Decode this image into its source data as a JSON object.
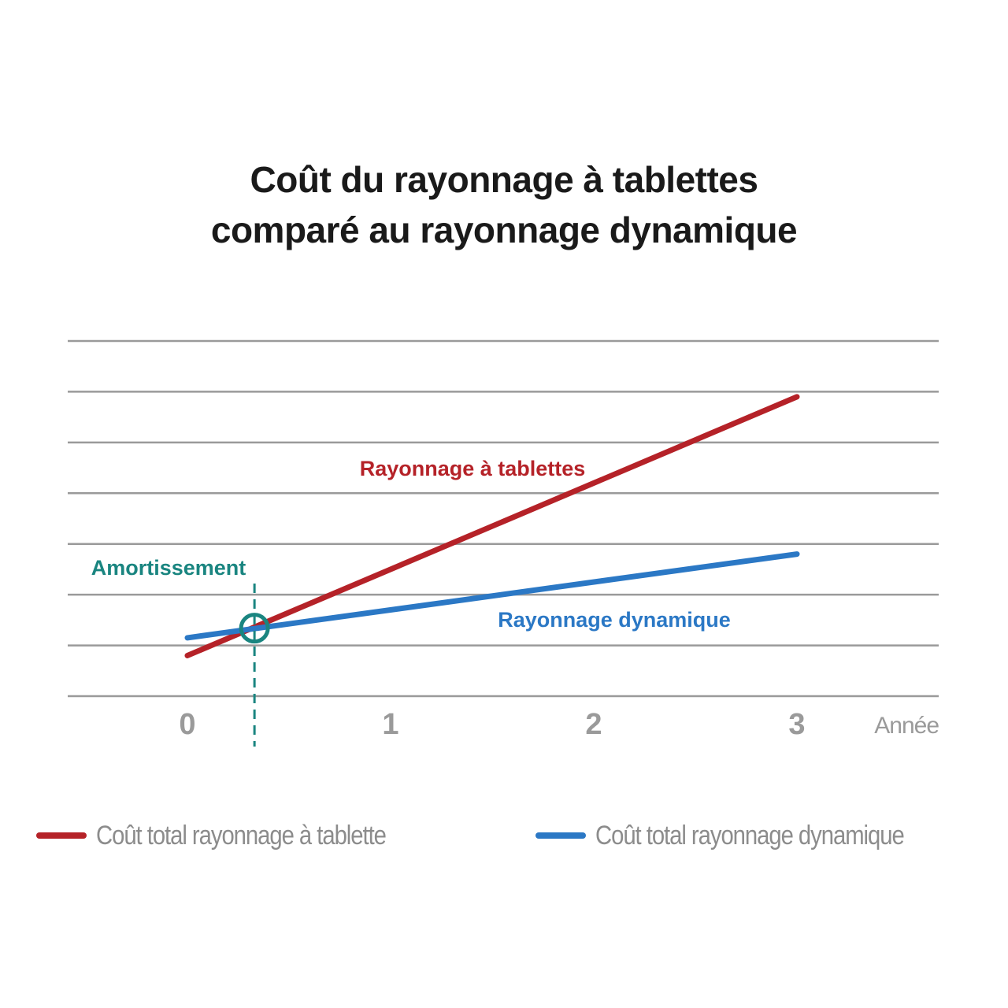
{
  "title": {
    "line1": "Coût du rayonnage à tablettes",
    "line2": "comparé au rayonnage dynamique"
  },
  "colors": {
    "shelving": "#b52228",
    "dynamic": "#2b78c5",
    "breakeven": "#1a8580",
    "grid": "#9a9a9a",
    "ticks": "#9a9a9a",
    "legend_text": "#8c8c8c"
  },
  "chart_data": {
    "type": "line",
    "title": "Coût du rayonnage à tablettes comparé au rayonnage dynamique",
    "xlabel": "Année",
    "ylabel": "",
    "x_ticks": [
      "0",
      "1",
      "2",
      "3"
    ],
    "xlim": [
      -0.59,
      3.7
    ],
    "ylim": [
      0,
      7
    ],
    "grid": true,
    "y_tick_labels_shown": false,
    "legend_position": "bottom",
    "series": [
      {
        "name": "Coût total rayonnage à tablette",
        "label": "Rayonnage à tablettes",
        "color_key": "shelving",
        "points": [
          [
            0,
            0.8
          ],
          [
            3,
            5.9
          ]
        ]
      },
      {
        "name": "Coût total rayonnage dynamique",
        "label": "Rayonnage dynamique",
        "color_key": "dynamic",
        "points": [
          [
            0,
            1.15
          ],
          [
            3,
            2.8
          ]
        ]
      }
    ],
    "annotations": [
      {
        "label": "Amortissement",
        "x": 0.33,
        "y": 1.34
      }
    ]
  }
}
